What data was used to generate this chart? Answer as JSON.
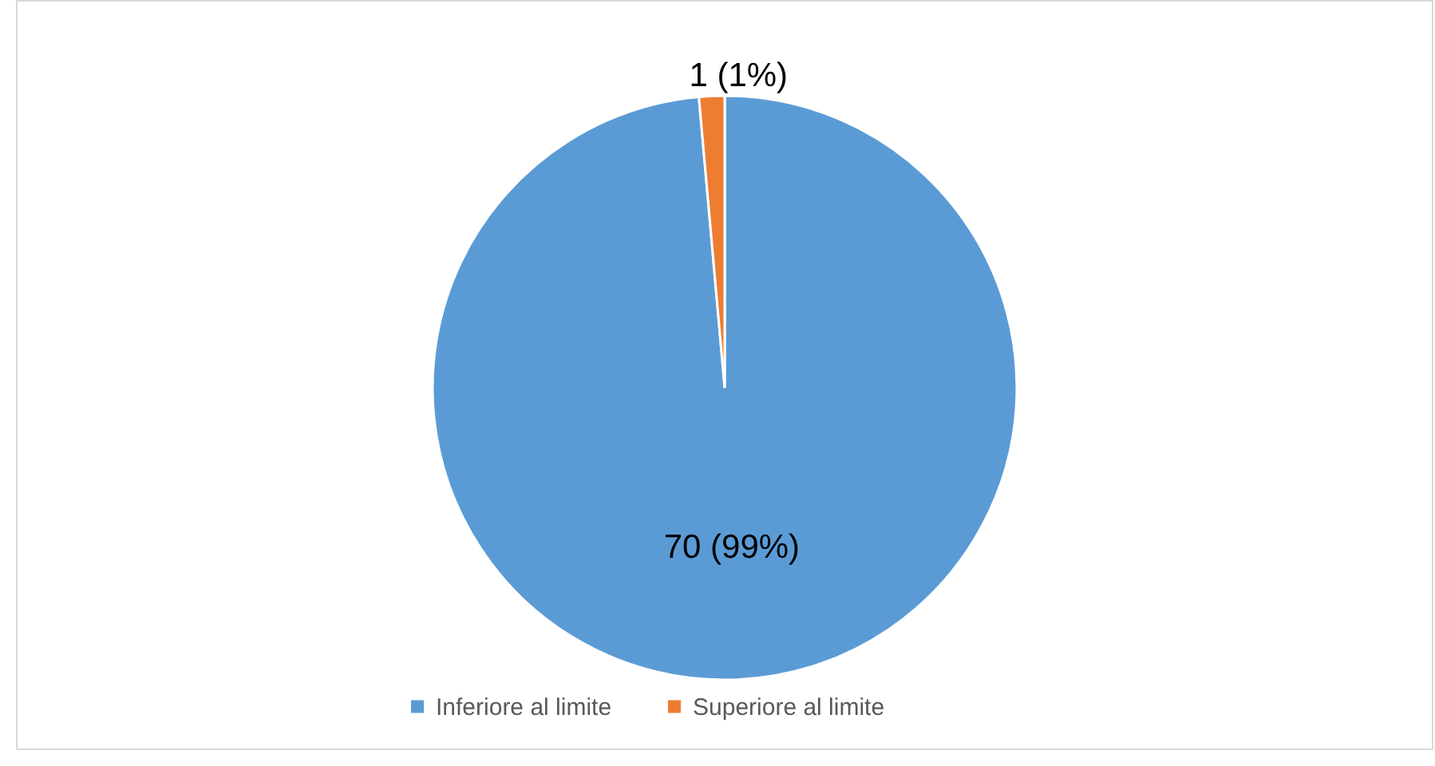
{
  "chart_data": {
    "type": "pie",
    "categories": [
      "Inferiore al limite",
      "Superiore al limite"
    ],
    "values": [
      70,
      1
    ],
    "colors": [
      "#5b9bd5",
      "#ed7d31"
    ],
    "value_labels": [
      "70 (99%)",
      "1 (1%)"
    ],
    "legend": "bottom"
  }
}
